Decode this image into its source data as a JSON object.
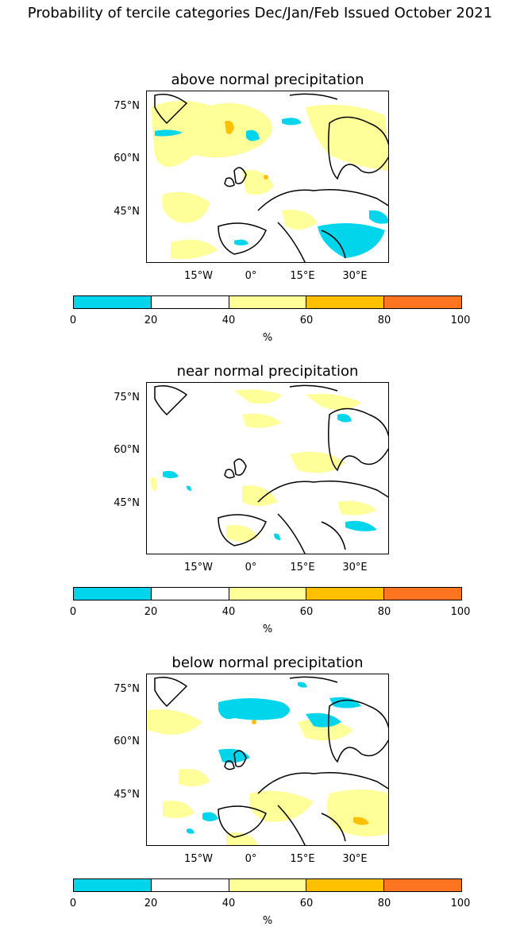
{
  "title": "Probability of tercile categories Dec/Jan/Feb Issued October 2021",
  "panels": [
    {
      "title": "above normal precipitation",
      "pattern": "above"
    },
    {
      "title": "near normal precipitation",
      "pattern": "near"
    },
    {
      "title": "below normal precipitation",
      "pattern": "below"
    }
  ],
  "lat_labels": [
    "75°N",
    "60°N",
    "45°N"
  ],
  "lon_labels": [
    "15°W",
    "0°",
    "15°E",
    "30°E"
  ],
  "colorbar": {
    "ticks": [
      "0",
      "20",
      "40",
      "60",
      "80",
      "100"
    ],
    "unit": "%",
    "colors": [
      "#00d5ec",
      "#ffffff",
      "#ffff99",
      "#ffc000",
      "#ff7420"
    ],
    "bins": [
      "0-20",
      "20-40",
      "40-60",
      "60-80",
      "80-100"
    ]
  },
  "legend_colors": {
    "cyan": "#00d5ec",
    "light_yellow": "#ffff99",
    "gold": "#ffc000",
    "orange": "#ff7420"
  }
}
